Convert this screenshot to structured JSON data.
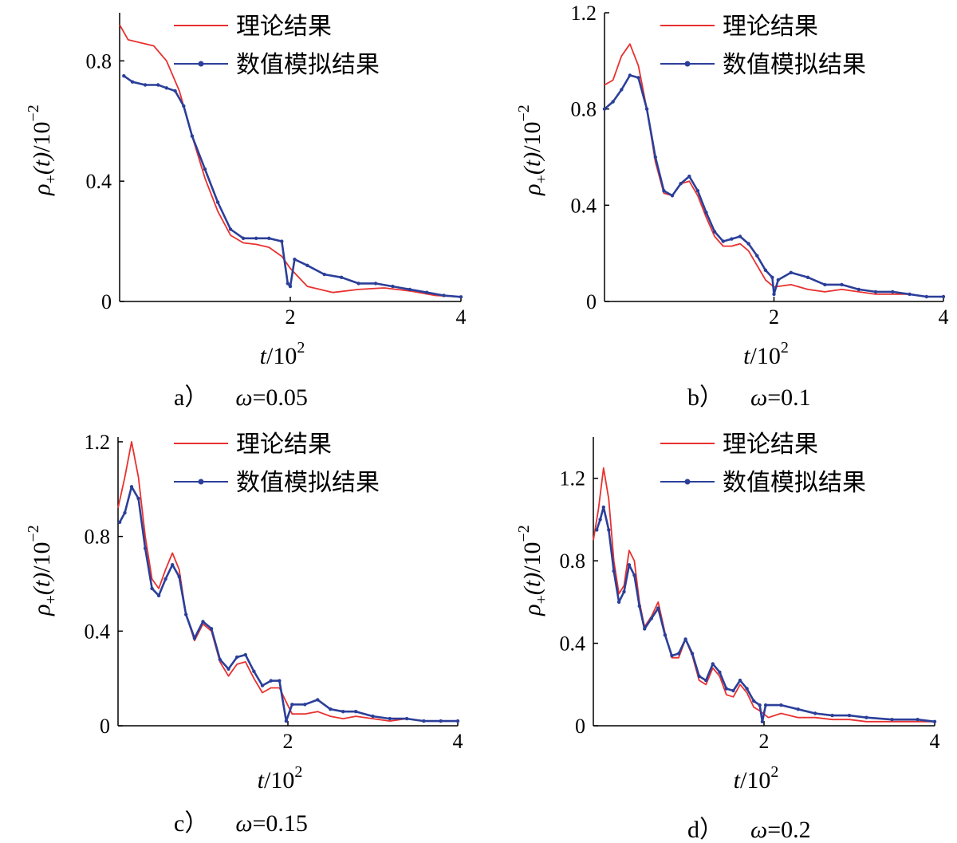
{
  "figure": {
    "legend": {
      "theory": "理论结果",
      "simulation": "数值模拟结果"
    },
    "xlabel": {
      "var": "t",
      "unit": "/10",
      "exp": "2"
    },
    "ylabel": {
      "sym": "ρ",
      "sub": "+",
      "arg": "(t)",
      "unit": "/10",
      "exp": "−2"
    },
    "colors": {
      "theory": "#e8312f",
      "simulation": "#2b3f99",
      "axis": "#000000"
    }
  },
  "chart_data": [
    {
      "type": "line",
      "panel": "a)",
      "caption_label": "a）",
      "omega_symbol": "ω",
      "omega_value": "=0.05",
      "xlim": [
        0,
        4
      ],
      "ylim": [
        0,
        0.96
      ],
      "xticks": [
        2,
        4
      ],
      "yticks": [
        0,
        0.4,
        0.8
      ],
      "xtick_labels": [
        "2",
        "4"
      ],
      "ytick_labels": [
        "0",
        "0.4",
        "0.8"
      ],
      "series": [
        {
          "name": "理论结果",
          "role": "theory",
          "x": [
            0,
            0.1,
            0.25,
            0.4,
            0.55,
            0.7,
            0.85,
            1.0,
            1.15,
            1.3,
            1.45,
            1.6,
            1.75,
            1.9,
            2.0,
            2.2,
            2.5,
            2.8,
            3.1,
            3.4,
            3.7,
            4.0
          ],
          "y": [
            0.92,
            0.87,
            0.86,
            0.85,
            0.8,
            0.7,
            0.55,
            0.41,
            0.3,
            0.22,
            0.195,
            0.19,
            0.18,
            0.15,
            0.11,
            0.05,
            0.03,
            0.04,
            0.045,
            0.035,
            0.02,
            0.015
          ]
        },
        {
          "name": "数值模拟结果",
          "role": "simulation",
          "x": [
            0.05,
            0.15,
            0.3,
            0.45,
            0.55,
            0.65,
            0.75,
            0.85,
            1.0,
            1.15,
            1.3,
            1.45,
            1.6,
            1.75,
            1.9,
            1.97,
            2.0,
            2.05,
            2.2,
            2.4,
            2.6,
            2.8,
            3.0,
            3.2,
            3.4,
            3.6,
            3.8,
            4.0
          ],
          "y": [
            0.75,
            0.73,
            0.72,
            0.72,
            0.71,
            0.7,
            0.65,
            0.55,
            0.44,
            0.33,
            0.24,
            0.21,
            0.21,
            0.21,
            0.2,
            0.06,
            0.05,
            0.14,
            0.12,
            0.09,
            0.08,
            0.06,
            0.06,
            0.05,
            0.04,
            0.03,
            0.02,
            0.015
          ]
        }
      ]
    },
    {
      "type": "line",
      "panel": "b)",
      "caption_label": "b）",
      "omega_symbol": "ω",
      "omega_value": "=0.1",
      "xlim": [
        0,
        4
      ],
      "ylim": [
        0,
        1.2
      ],
      "xticks": [
        2,
        4
      ],
      "yticks": [
        0,
        0.4,
        0.8,
        1.2
      ],
      "xtick_labels": [
        "2",
        "4"
      ],
      "ytick_labels": [
        "0",
        "0.4",
        "0.8",
        "1.2"
      ],
      "series": [
        {
          "name": "理论结果",
          "role": "theory",
          "x": [
            0,
            0.1,
            0.2,
            0.3,
            0.4,
            0.5,
            0.6,
            0.7,
            0.8,
            0.9,
            1.0,
            1.1,
            1.2,
            1.3,
            1.4,
            1.5,
            1.6,
            1.7,
            1.8,
            1.9,
            2.0,
            2.2,
            2.4,
            2.6,
            2.8,
            3.0,
            3.2,
            3.4,
            3.6,
            3.8,
            4.0
          ],
          "y": [
            0.9,
            0.92,
            1.02,
            1.07,
            0.98,
            0.8,
            0.58,
            0.45,
            0.44,
            0.49,
            0.5,
            0.44,
            0.35,
            0.27,
            0.23,
            0.23,
            0.24,
            0.21,
            0.15,
            0.09,
            0.06,
            0.07,
            0.05,
            0.04,
            0.05,
            0.04,
            0.03,
            0.03,
            0.03,
            0.02,
            0.02
          ]
        },
        {
          "name": "数值模拟结果",
          "role": "simulation",
          "x": [
            0,
            0.1,
            0.2,
            0.3,
            0.4,
            0.5,
            0.6,
            0.7,
            0.8,
            0.9,
            1.0,
            1.1,
            1.2,
            1.3,
            1.4,
            1.5,
            1.6,
            1.7,
            1.8,
            1.9,
            1.98,
            2.0,
            2.05,
            2.2,
            2.4,
            2.6,
            2.8,
            3.0,
            3.2,
            3.4,
            3.6,
            3.8,
            4.0
          ],
          "y": [
            0.8,
            0.83,
            0.88,
            0.94,
            0.93,
            0.8,
            0.6,
            0.46,
            0.44,
            0.49,
            0.52,
            0.46,
            0.37,
            0.29,
            0.25,
            0.26,
            0.27,
            0.24,
            0.19,
            0.13,
            0.1,
            0.03,
            0.09,
            0.12,
            0.1,
            0.07,
            0.07,
            0.05,
            0.04,
            0.04,
            0.03,
            0.02,
            0.02
          ]
        }
      ]
    },
    {
      "type": "line",
      "panel": "c)",
      "caption_label": "c）",
      "omega_symbol": "ω",
      "omega_value": "=0.15",
      "xlim": [
        0,
        4
      ],
      "ylim": [
        0,
        1.22
      ],
      "xticks": [
        2,
        4
      ],
      "yticks": [
        0,
        0.4,
        0.8,
        1.2
      ],
      "xtick_labels": [
        "2",
        "4"
      ],
      "ytick_labels": [
        "0",
        "0.4",
        "0.8",
        "1.2"
      ],
      "series": [
        {
          "name": "理论结果",
          "role": "theory",
          "x": [
            0,
            0.08,
            0.16,
            0.24,
            0.32,
            0.4,
            0.48,
            0.56,
            0.64,
            0.72,
            0.8,
            0.9,
            1.0,
            1.1,
            1.2,
            1.3,
            1.4,
            1.5,
            1.6,
            1.7,
            1.8,
            1.9,
            1.98,
            2.05,
            2.2,
            2.35,
            2.5,
            2.65,
            2.8,
            3.0,
            3.2,
            3.4,
            3.6,
            3.8,
            4.0
          ],
          "y": [
            0.92,
            1.05,
            1.2,
            1.05,
            0.8,
            0.62,
            0.58,
            0.66,
            0.73,
            0.66,
            0.47,
            0.36,
            0.43,
            0.4,
            0.27,
            0.21,
            0.26,
            0.27,
            0.2,
            0.14,
            0.16,
            0.16,
            0.1,
            0.05,
            0.05,
            0.06,
            0.04,
            0.03,
            0.04,
            0.03,
            0.02,
            0.03,
            0.02,
            0.02,
            0.02
          ]
        },
        {
          "name": "数值模拟结果",
          "role": "simulation",
          "x": [
            0.02,
            0.08,
            0.16,
            0.24,
            0.32,
            0.4,
            0.48,
            0.56,
            0.64,
            0.72,
            0.8,
            0.9,
            1.0,
            1.1,
            1.2,
            1.3,
            1.4,
            1.5,
            1.6,
            1.7,
            1.8,
            1.9,
            1.98,
            2.05,
            2.2,
            2.35,
            2.5,
            2.65,
            2.8,
            3.0,
            3.2,
            3.4,
            3.6,
            3.8,
            4.0
          ],
          "y": [
            0.86,
            0.9,
            1.01,
            0.96,
            0.75,
            0.58,
            0.55,
            0.62,
            0.68,
            0.63,
            0.47,
            0.37,
            0.44,
            0.41,
            0.28,
            0.24,
            0.29,
            0.3,
            0.23,
            0.17,
            0.19,
            0.19,
            0.02,
            0.09,
            0.09,
            0.11,
            0.07,
            0.06,
            0.06,
            0.04,
            0.03,
            0.03,
            0.02,
            0.02,
            0.02
          ]
        }
      ]
    },
    {
      "type": "line",
      "panel": "d)",
      "caption_label": "d）",
      "omega_symbol": "ω",
      "omega_value": "=0.2",
      "xlim": [
        0,
        4
      ],
      "ylim": [
        0,
        1.4
      ],
      "xticks": [
        2,
        4
      ],
      "yticks": [
        0,
        0.4,
        0.8,
        1.2
      ],
      "xtick_labels": [
        "2",
        "4"
      ],
      "ytick_labels": [
        "0",
        "0.4",
        "0.8",
        "1.2"
      ],
      "series": [
        {
          "name": "理论结果",
          "role": "theory",
          "x": [
            0,
            0.06,
            0.12,
            0.18,
            0.24,
            0.3,
            0.36,
            0.42,
            0.48,
            0.54,
            0.6,
            0.68,
            0.76,
            0.84,
            0.92,
            1.0,
            1.08,
            1.16,
            1.24,
            1.32,
            1.4,
            1.48,
            1.56,
            1.64,
            1.72,
            1.8,
            1.88,
            1.96,
            2.05,
            2.2,
            2.4,
            2.6,
            2.8,
            3.0,
            3.2,
            3.5,
            3.8,
            4.0
          ],
          "y": [
            0.9,
            1.05,
            1.25,
            1.1,
            0.8,
            0.64,
            0.68,
            0.85,
            0.8,
            0.6,
            0.48,
            0.53,
            0.6,
            0.45,
            0.33,
            0.33,
            0.42,
            0.34,
            0.22,
            0.2,
            0.28,
            0.24,
            0.15,
            0.14,
            0.2,
            0.16,
            0.09,
            0.07,
            0.04,
            0.06,
            0.04,
            0.04,
            0.03,
            0.03,
            0.02,
            0.02,
            0.02,
            0.02
          ]
        },
        {
          "name": "数值模拟结果",
          "role": "simulation",
          "x": [
            0.04,
            0.08,
            0.12,
            0.18,
            0.24,
            0.3,
            0.36,
            0.42,
            0.48,
            0.54,
            0.6,
            0.68,
            0.76,
            0.84,
            0.92,
            1.0,
            1.08,
            1.16,
            1.24,
            1.32,
            1.4,
            1.48,
            1.56,
            1.64,
            1.72,
            1.8,
            1.88,
            1.95,
            1.98,
            2.02,
            2.2,
            2.4,
            2.6,
            2.8,
            3.0,
            3.2,
            3.5,
            3.8,
            4.0
          ],
          "y": [
            0.95,
            1.0,
            1.06,
            0.95,
            0.75,
            0.6,
            0.65,
            0.78,
            0.73,
            0.58,
            0.47,
            0.52,
            0.57,
            0.44,
            0.34,
            0.35,
            0.42,
            0.35,
            0.24,
            0.22,
            0.3,
            0.26,
            0.18,
            0.17,
            0.22,
            0.18,
            0.12,
            0.1,
            0.02,
            0.1,
            0.1,
            0.08,
            0.06,
            0.05,
            0.05,
            0.04,
            0.03,
            0.03,
            0.02
          ]
        }
      ]
    }
  ]
}
